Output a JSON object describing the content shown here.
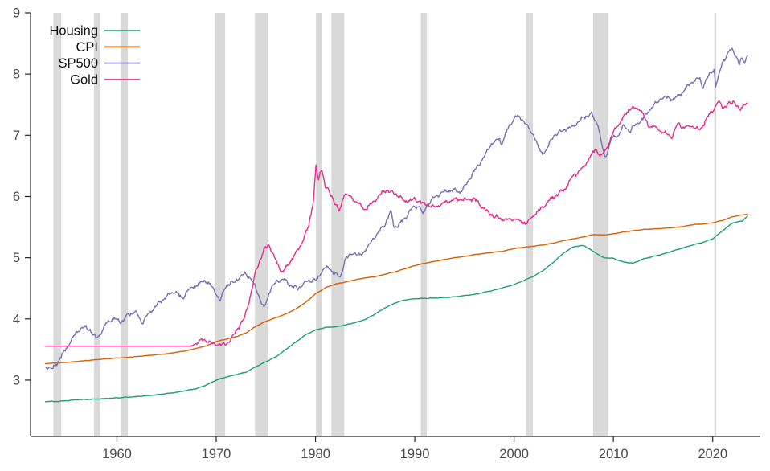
{
  "chart_data": {
    "type": "line",
    "title": "",
    "xlabel": "",
    "ylabel": "",
    "xlim": [
      1951.3,
      2024.8
    ],
    "ylim": [
      2.08,
      9.0
    ],
    "x_ticks": [
      1960,
      1970,
      1980,
      1990,
      2000,
      2010,
      2020
    ],
    "y_ticks": [
      3,
      4,
      5,
      6,
      7,
      8,
      9
    ],
    "grid": false,
    "legend_position": "top-left",
    "axis_color": "#262626",
    "tick_label_color": "#4a4a4a",
    "recession_band_color": "#d9d9d9",
    "recessions": [
      [
        1953.6,
        1954.4
      ],
      [
        1957.7,
        1958.3
      ],
      [
        1960.4,
        1961.1
      ],
      [
        1969.9,
        1970.9
      ],
      [
        1973.9,
        1975.2
      ],
      [
        1980.05,
        1980.6
      ],
      [
        1981.6,
        1982.9
      ],
      [
        1990.6,
        1991.2
      ],
      [
        2001.2,
        2001.9
      ],
      [
        2007.95,
        2009.45
      ],
      [
        2020.15,
        2020.35
      ]
    ],
    "series": [
      {
        "name": "Housing",
        "color": "#1b9e77",
        "noise": 0.006,
        "points": [
          [
            1952.8,
            2.65
          ],
          [
            1954,
            2.65
          ],
          [
            1956,
            2.68
          ],
          [
            1958,
            2.69
          ],
          [
            1960,
            2.71
          ],
          [
            1962,
            2.73
          ],
          [
            1964,
            2.76
          ],
          [
            1966,
            2.8
          ],
          [
            1968,
            2.86
          ],
          [
            1969,
            2.92
          ],
          [
            1970,
            3.0
          ],
          [
            1971,
            3.05
          ],
          [
            1972,
            3.09
          ],
          [
            1973,
            3.13
          ],
          [
            1974,
            3.22
          ],
          [
            1975,
            3.3
          ],
          [
            1976,
            3.38
          ],
          [
            1977,
            3.5
          ],
          [
            1978,
            3.62
          ],
          [
            1979,
            3.74
          ],
          [
            1980,
            3.82
          ],
          [
            1981,
            3.86
          ],
          [
            1982,
            3.87
          ],
          [
            1983,
            3.9
          ],
          [
            1984,
            3.94
          ],
          [
            1985,
            3.99
          ],
          [
            1986,
            4.08
          ],
          [
            1987,
            4.18
          ],
          [
            1988,
            4.26
          ],
          [
            1989,
            4.31
          ],
          [
            1990,
            4.33
          ],
          [
            1992,
            4.34
          ],
          [
            1994,
            4.36
          ],
          [
            1996,
            4.4
          ],
          [
            1998,
            4.47
          ],
          [
            2000,
            4.56
          ],
          [
            2001,
            4.63
          ],
          [
            2002,
            4.7
          ],
          [
            2003,
            4.8
          ],
          [
            2004,
            4.93
          ],
          [
            2005,
            5.08
          ],
          [
            2006,
            5.18
          ],
          [
            2007,
            5.2
          ],
          [
            2008,
            5.1
          ],
          [
            2009,
            5.0
          ],
          [
            2010,
            4.99
          ],
          [
            2011,
            4.93
          ],
          [
            2012,
            4.91
          ],
          [
            2013,
            4.98
          ],
          [
            2014,
            5.02
          ],
          [
            2015,
            5.06
          ],
          [
            2016,
            5.11
          ],
          [
            2017,
            5.16
          ],
          [
            2018,
            5.21
          ],
          [
            2019,
            5.25
          ],
          [
            2020,
            5.31
          ],
          [
            2021,
            5.44
          ],
          [
            2022,
            5.57
          ],
          [
            2023,
            5.6
          ],
          [
            2023.5,
            5.68
          ]
        ]
      },
      {
        "name": "CPI",
        "color": "#d95f02",
        "noise": 0.004,
        "points": [
          [
            1952.8,
            3.27
          ],
          [
            1955,
            3.29
          ],
          [
            1957,
            3.32
          ],
          [
            1959,
            3.35
          ],
          [
            1961,
            3.37
          ],
          [
            1963,
            3.4
          ],
          [
            1965,
            3.43
          ],
          [
            1967,
            3.48
          ],
          [
            1969,
            3.56
          ],
          [
            1970,
            3.63
          ],
          [
            1971,
            3.67
          ],
          [
            1972,
            3.71
          ],
          [
            1973,
            3.77
          ],
          [
            1974,
            3.88
          ],
          [
            1975,
            3.96
          ],
          [
            1976,
            4.02
          ],
          [
            1977,
            4.08
          ],
          [
            1978,
            4.16
          ],
          [
            1979,
            4.27
          ],
          [
            1980,
            4.41
          ],
          [
            1981,
            4.51
          ],
          [
            1982,
            4.57
          ],
          [
            1983,
            4.6
          ],
          [
            1984,
            4.64
          ],
          [
            1985,
            4.67
          ],
          [
            1986,
            4.69
          ],
          [
            1987,
            4.73
          ],
          [
            1988,
            4.77
          ],
          [
            1989,
            4.82
          ],
          [
            1990,
            4.87
          ],
          [
            1991,
            4.91
          ],
          [
            1992,
            4.94
          ],
          [
            1993,
            4.97
          ],
          [
            1994,
            5.0
          ],
          [
            1995,
            5.02
          ],
          [
            1996,
            5.05
          ],
          [
            1997,
            5.07
          ],
          [
            1998,
            5.09
          ],
          [
            1999,
            5.11
          ],
          [
            2000,
            5.15
          ],
          [
            2001,
            5.17
          ],
          [
            2002,
            5.19
          ],
          [
            2003,
            5.21
          ],
          [
            2004,
            5.24
          ],
          [
            2005,
            5.28
          ],
          [
            2006,
            5.31
          ],
          [
            2007,
            5.34
          ],
          [
            2008,
            5.38
          ],
          [
            2009,
            5.37
          ],
          [
            2010,
            5.39
          ],
          [
            2011,
            5.42
          ],
          [
            2012,
            5.44
          ],
          [
            2013,
            5.46
          ],
          [
            2014,
            5.47
          ],
          [
            2015,
            5.48
          ],
          [
            2016,
            5.49
          ],
          [
            2017,
            5.51
          ],
          [
            2018,
            5.54
          ],
          [
            2019,
            5.55
          ],
          [
            2020,
            5.57
          ],
          [
            2021,
            5.61
          ],
          [
            2022,
            5.67
          ],
          [
            2023,
            5.7
          ],
          [
            2023.5,
            5.71
          ]
        ]
      },
      {
        "name": "SP500",
        "color": "#7570b3",
        "noise": 0.045,
        "points": [
          [
            1952.8,
            3.22
          ],
          [
            1953.5,
            3.18
          ],
          [
            1954,
            3.28
          ],
          [
            1955,
            3.55
          ],
          [
            1956,
            3.8
          ],
          [
            1956.7,
            3.87
          ],
          [
            1957.3,
            3.82
          ],
          [
            1957.9,
            3.68
          ],
          [
            1958.5,
            3.8
          ],
          [
            1959,
            3.95
          ],
          [
            1959.7,
            4.0
          ],
          [
            1960.5,
            3.95
          ],
          [
            1961,
            4.05
          ],
          [
            1961.9,
            4.12
          ],
          [
            1962.5,
            3.93
          ],
          [
            1963,
            4.05
          ],
          [
            1964,
            4.22
          ],
          [
            1965,
            4.38
          ],
          [
            1965.9,
            4.45
          ],
          [
            1966.6,
            4.32
          ],
          [
            1967,
            4.45
          ],
          [
            1968,
            4.55
          ],
          [
            1968.9,
            4.63
          ],
          [
            1969.6,
            4.52
          ],
          [
            1970.4,
            4.3
          ],
          [
            1971,
            4.55
          ],
          [
            1971.8,
            4.6
          ],
          [
            1972.9,
            4.75
          ],
          [
            1973.5,
            4.65
          ],
          [
            1974,
            4.5
          ],
          [
            1974.8,
            4.17
          ],
          [
            1975.5,
            4.5
          ],
          [
            1976,
            4.6
          ],
          [
            1976.8,
            4.65
          ],
          [
            1977.5,
            4.55
          ],
          [
            1978.2,
            4.49
          ],
          [
            1979,
            4.6
          ],
          [
            1980.2,
            4.65
          ],
          [
            1980.9,
            4.85
          ],
          [
            1981.5,
            4.8
          ],
          [
            1982.5,
            4.68
          ],
          [
            1983,
            4.98
          ],
          [
            1983.8,
            5.08
          ],
          [
            1984.5,
            5.03
          ],
          [
            1985,
            5.12
          ],
          [
            1986,
            5.35
          ],
          [
            1987,
            5.55
          ],
          [
            1987.6,
            5.77
          ],
          [
            1987.9,
            5.5
          ],
          [
            1988.5,
            5.55
          ],
          [
            1989,
            5.65
          ],
          [
            1989.8,
            5.82
          ],
          [
            1990.5,
            5.85
          ],
          [
            1990.8,
            5.7
          ],
          [
            1991.2,
            5.85
          ],
          [
            1992,
            6.0
          ],
          [
            1993,
            6.08
          ],
          [
            1994,
            6.1
          ],
          [
            1994.5,
            6.07
          ],
          [
            1995,
            6.15
          ],
          [
            1996,
            6.42
          ],
          [
            1997,
            6.65
          ],
          [
            1997.7,
            6.85
          ],
          [
            1998.5,
            6.95
          ],
          [
            1998.7,
            6.85
          ],
          [
            1999.5,
            7.15
          ],
          [
            2000.2,
            7.32
          ],
          [
            2000.9,
            7.25
          ],
          [
            2001.7,
            7.05
          ],
          [
            2002,
            7.0
          ],
          [
            2002.7,
            6.7
          ],
          [
            2003.2,
            6.75
          ],
          [
            2004,
            7.0
          ],
          [
            2005,
            7.08
          ],
          [
            2006,
            7.15
          ],
          [
            2007,
            7.3
          ],
          [
            2007.8,
            7.34
          ],
          [
            2008.5,
            7.15
          ],
          [
            2008.8,
            6.85
          ],
          [
            2009.2,
            6.62
          ],
          [
            2009.8,
            6.95
          ],
          [
            2010.5,
            7.0
          ],
          [
            2011,
            7.15
          ],
          [
            2011.7,
            7.07
          ],
          [
            2012,
            7.15
          ],
          [
            2012.9,
            7.25
          ],
          [
            2013.8,
            7.45
          ],
          [
            2014.8,
            7.6
          ],
          [
            2015.5,
            7.62
          ],
          [
            2016,
            7.58
          ],
          [
            2016.8,
            7.68
          ],
          [
            2017.8,
            7.85
          ],
          [
            2018.7,
            7.95
          ],
          [
            2018.95,
            7.78
          ],
          [
            2019.8,
            8.03
          ],
          [
            2020.15,
            8.08
          ],
          [
            2020.3,
            7.8
          ],
          [
            2021,
            8.2
          ],
          [
            2021.9,
            8.42
          ],
          [
            2022.2,
            8.35
          ],
          [
            2022.7,
            8.15
          ],
          [
            2022.9,
            8.25
          ],
          [
            2023.2,
            8.2
          ],
          [
            2023.5,
            8.3
          ]
        ]
      },
      {
        "name": "Gold",
        "color": "#e7298a",
        "noise": 0.045,
        "flat_until": 1968,
        "points": [
          [
            1952.8,
            3.555
          ],
          [
            1967.5,
            3.555
          ],
          [
            1968.3,
            3.63
          ],
          [
            1968.8,
            3.66
          ],
          [
            1969.5,
            3.6
          ],
          [
            1970.5,
            3.57
          ],
          [
            1971.3,
            3.62
          ],
          [
            1972,
            3.8
          ],
          [
            1972.8,
            4.0
          ],
          [
            1973.5,
            4.4
          ],
          [
            1974,
            4.8
          ],
          [
            1974.9,
            5.15
          ],
          [
            1975.3,
            5.22
          ],
          [
            1976,
            4.95
          ],
          [
            1976.7,
            4.75
          ],
          [
            1977.5,
            4.95
          ],
          [
            1978.5,
            5.2
          ],
          [
            1979.3,
            5.5
          ],
          [
            1979.8,
            5.95
          ],
          [
            1980.05,
            6.5
          ],
          [
            1980.3,
            6.25
          ],
          [
            1980.6,
            6.48
          ],
          [
            1981,
            6.15
          ],
          [
            1981.5,
            6.05
          ],
          [
            1982.4,
            5.75
          ],
          [
            1982.9,
            6.05
          ],
          [
            1983.3,
            6.02
          ],
          [
            1984,
            5.93
          ],
          [
            1985,
            5.78
          ],
          [
            1986,
            5.95
          ],
          [
            1987,
            6.1
          ],
          [
            1988,
            6.05
          ],
          [
            1989,
            5.92
          ],
          [
            1990,
            5.95
          ],
          [
            1991,
            5.88
          ],
          [
            1992,
            5.83
          ],
          [
            1993,
            5.9
          ],
          [
            1994,
            5.95
          ],
          [
            1995,
            5.95
          ],
          [
            1996,
            5.96
          ],
          [
            1997,
            5.8
          ],
          [
            1998,
            5.67
          ],
          [
            1999,
            5.62
          ],
          [
            2000,
            5.63
          ],
          [
            2001.3,
            5.56
          ],
          [
            2002,
            5.7
          ],
          [
            2003,
            5.85
          ],
          [
            2004,
            6.0
          ],
          [
            2005,
            6.1
          ],
          [
            2006,
            6.35
          ],
          [
            2006.5,
            6.4
          ],
          [
            2007,
            6.48
          ],
          [
            2008.2,
            6.78
          ],
          [
            2008.8,
            6.65
          ],
          [
            2009.5,
            6.85
          ],
          [
            2010,
            7.05
          ],
          [
            2011,
            7.3
          ],
          [
            2011.7,
            7.45
          ],
          [
            2012.8,
            7.42
          ],
          [
            2013.5,
            7.15
          ],
          [
            2014,
            7.15
          ],
          [
            2015,
            7.05
          ],
          [
            2015.9,
            6.98
          ],
          [
            2016.5,
            7.2
          ],
          [
            2017,
            7.13
          ],
          [
            2018,
            7.15
          ],
          [
            2018.7,
            7.08
          ],
          [
            2019.5,
            7.3
          ],
          [
            2020.6,
            7.55
          ],
          [
            2021,
            7.45
          ],
          [
            2021.5,
            7.5
          ],
          [
            2022.2,
            7.55
          ],
          [
            2022.8,
            7.4
          ],
          [
            2023.2,
            7.52
          ],
          [
            2023.5,
            7.52
          ]
        ]
      }
    ]
  }
}
